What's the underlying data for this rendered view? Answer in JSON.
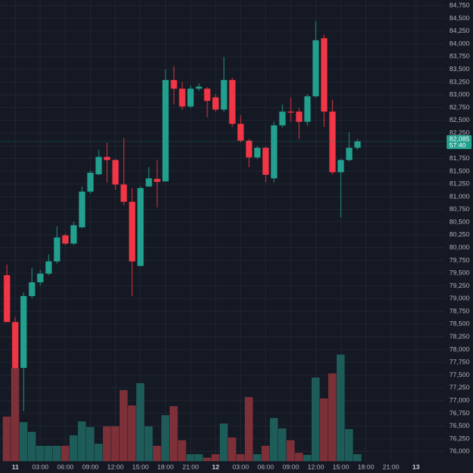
{
  "chart_data": {
    "type": "candlestick",
    "up_color": "#22a08d",
    "down_color": "#f23645",
    "up_volume_color": "#1d5c58",
    "down_volume_color": "#7d3038",
    "grid": true,
    "ylim": [
      75810,
      84860
    ],
    "xlim": [
      -0.83,
      52.5
    ],
    "volume_lim": [
      0,
      662
    ],
    "yticks": [
      {
        "value": 76000,
        "label": "76,000"
      },
      {
        "value": 76250,
        "label": "76,250"
      },
      {
        "value": 76500,
        "label": "76,500"
      },
      {
        "value": 76750,
        "label": "76,750"
      },
      {
        "value": 77000,
        "label": "77,000"
      },
      {
        "value": 77250,
        "label": "77,250"
      },
      {
        "value": 77500,
        "label": "77,500"
      },
      {
        "value": 77750,
        "label": "77,750"
      },
      {
        "value": 78000,
        "label": "78,000"
      },
      {
        "value": 78250,
        "label": "78,250"
      },
      {
        "value": 78500,
        "label": "78,500"
      },
      {
        "value": 78750,
        "label": "78,750"
      },
      {
        "value": 79000,
        "label": "79,000"
      },
      {
        "value": 79250,
        "label": "79,250"
      },
      {
        "value": 79500,
        "label": "79,500"
      },
      {
        "value": 79750,
        "label": "79,750"
      },
      {
        "value": 80000,
        "label": "80,000"
      },
      {
        "value": 80250,
        "label": "80,250"
      },
      {
        "value": 80500,
        "label": "80,500"
      },
      {
        "value": 80750,
        "label": "80,750"
      },
      {
        "value": 81000,
        "label": "81,000"
      },
      {
        "value": 81250,
        "label": "81,250"
      },
      {
        "value": 81500,
        "label": "81,500"
      },
      {
        "value": 81750,
        "label": "81,750"
      },
      {
        "value": 82000,
        "label": "82,000"
      },
      {
        "value": 82250,
        "label": "82,250"
      },
      {
        "value": 82500,
        "label": "82,500"
      },
      {
        "value": 82750,
        "label": "82,750"
      },
      {
        "value": 83000,
        "label": "83,000"
      },
      {
        "value": 83250,
        "label": "83,250"
      },
      {
        "value": 83500,
        "label": "83,500"
      },
      {
        "value": 83750,
        "label": "83,750"
      },
      {
        "value": 84000,
        "label": "84,000"
      },
      {
        "value": 84250,
        "label": "84,250"
      },
      {
        "value": 84500,
        "label": "84,500"
      },
      {
        "value": 84750,
        "label": "84,750"
      }
    ],
    "xticks": [
      {
        "value": 1,
        "label": "11"
      },
      {
        "value": 4,
        "label": "03:00"
      },
      {
        "value": 7,
        "label": "06:00"
      },
      {
        "value": 10,
        "label": "09:00"
      },
      {
        "value": 13,
        "label": "12:00"
      },
      {
        "value": 16,
        "label": "15:00"
      },
      {
        "value": 19,
        "label": "18:00"
      },
      {
        "value": 22,
        "label": "21:00"
      },
      {
        "value": 25,
        "label": "12"
      },
      {
        "value": 28,
        "label": "03:00"
      },
      {
        "value": 31,
        "label": "06:00"
      },
      {
        "value": 34,
        "label": "09:00"
      },
      {
        "value": 37,
        "label": "12:00"
      },
      {
        "value": 40,
        "label": "15:00"
      },
      {
        "value": 43,
        "label": "18:00"
      },
      {
        "value": 46,
        "label": "21:00"
      },
      {
        "value": 49,
        "label": "13"
      }
    ],
    "open": [
      79460,
      78540,
      77640,
      79050,
      79320,
      79490,
      79730,
      80240,
      80080,
      80400,
      81100,
      81440,
      81780,
      81720,
      81240,
      80900,
      79640,
      81200,
      81350,
      81300,
      83290,
      83120,
      82770,
      83120,
      83120,
      82950,
      82710,
      83290,
      82430,
      82100,
      81770,
      81960,
      81360,
      82400,
      82670,
      82670,
      82470,
      82970,
      84110,
      82670,
      81480,
      81720,
      81960
    ],
    "high": [
      79670,
      78640,
      79120,
      79600,
      79560,
      79870,
      80420,
      80280,
      80510,
      81200,
      81510,
      81920,
      82060,
      81740,
      82150,
      81170,
      81200,
      81580,
      81720,
      83490,
      83560,
      83250,
      83180,
      83220,
      83150,
      83010,
      83740,
      83330,
      82600,
      82130,
      81990,
      81990,
      82470,
      82810,
      82950,
      82740,
      83010,
      84450,
      84180,
      82900,
      81740,
      82260,
      82130
    ],
    "low": [
      78540,
      77620,
      76790,
      79010,
      79260,
      79460,
      79690,
      80050,
      80050,
      80380,
      81060,
      81420,
      81280,
      81140,
      80830,
      79050,
      79640,
      81200,
      80790,
      81300,
      82810,
      82700,
      82740,
      83080,
      82560,
      82670,
      82670,
      82370,
      82060,
      81580,
      81740,
      81280,
      81280,
      82360,
      82470,
      82130,
      82400,
      82950,
      82370,
      81440,
      80590,
      81690,
      81920
    ],
    "close": [
      78540,
      77640,
      79050,
      79320,
      79490,
      79730,
      80200,
      80080,
      80440,
      81100,
      81470,
      81780,
      81720,
      81240,
      80900,
      79730,
      81170,
      81360,
      81290,
      83290,
      83120,
      82770,
      83120,
      83160,
      82880,
      82710,
      83290,
      82430,
      82100,
      81770,
      81960,
      81430,
      82400,
      82670,
      82650,
      82470,
      82970,
      84070,
      82670,
      81480,
      81720,
      81960,
      82085
    ],
    "volume": [
      64,
      134,
      56,
      42,
      22,
      22,
      22,
      22,
      37,
      57,
      49,
      25,
      50,
      50,
      102,
      80,
      112,
      50,
      22,
      66,
      79,
      30,
      10,
      10,
      5,
      10,
      54,
      34,
      10,
      92,
      10,
      22,
      62,
      47,
      30,
      12,
      9,
      120,
      90,
      126,
      153,
      46,
      10
    ],
    "last_price": {
      "value": 82085,
      "label": "82,085"
    },
    "countdown": "57:40"
  }
}
